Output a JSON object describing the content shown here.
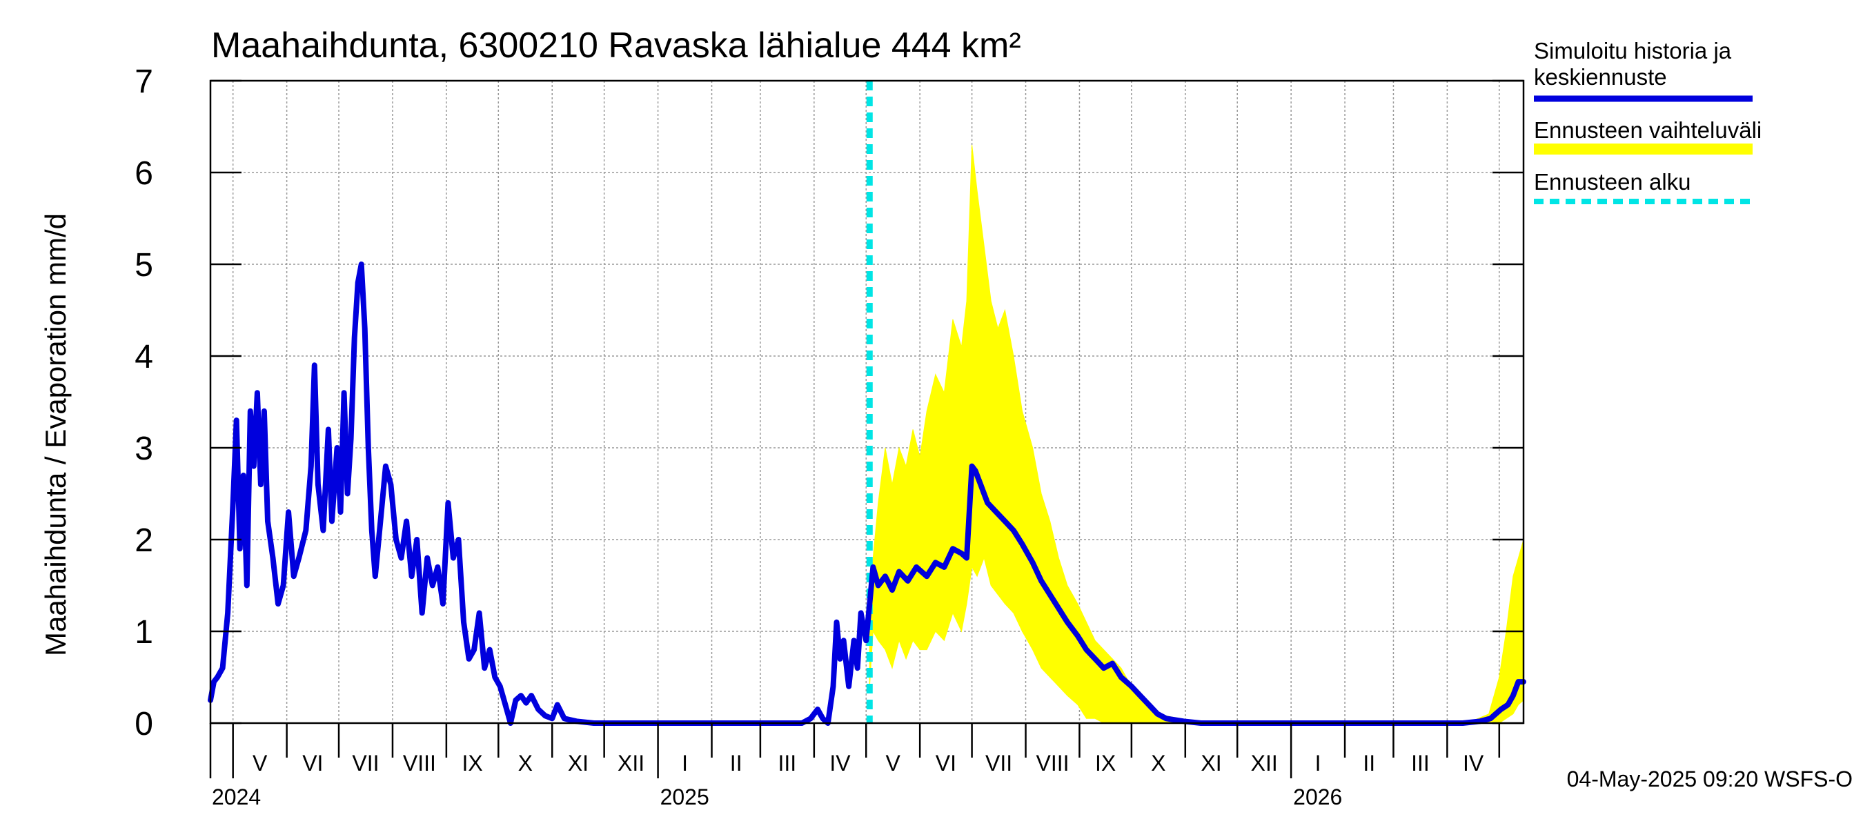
{
  "chart_data": {
    "type": "line",
    "title": "Maahaihdunta, 6300210 Ravaska lähialue 444 km²",
    "ylabel": "Maahaihdunta / Evaporation   mm/d",
    "ylim": [
      0,
      7
    ],
    "yticks": [
      0,
      1,
      2,
      3,
      4,
      5,
      6,
      7
    ],
    "xlim": [
      "2024-04-18",
      "2026-05-15"
    ],
    "grid": true,
    "month_labels": [
      "V",
      "VI",
      "VII",
      "VIII",
      "IX",
      "X",
      "XI",
      "XII",
      "I",
      "II",
      "III",
      "IV",
      "V",
      "VI",
      "VII",
      "VIII",
      "IX",
      "X",
      "XI",
      "XII",
      "I",
      "II",
      "III",
      "IV"
    ],
    "month_starts": [
      "2024-05-01",
      "2024-06-01",
      "2024-07-01",
      "2024-08-01",
      "2024-09-01",
      "2024-10-01",
      "2024-11-01",
      "2024-12-01",
      "2025-01-01",
      "2025-02-01",
      "2025-03-01",
      "2025-04-01",
      "2025-05-01",
      "2025-06-01",
      "2025-07-01",
      "2025-08-01",
      "2025-09-01",
      "2025-10-01",
      "2025-11-01",
      "2025-12-01",
      "2026-01-01",
      "2026-02-01",
      "2026-03-01",
      "2026-04-01",
      "2026-05-01"
    ],
    "year_labels": [
      {
        "label": "2024",
        "date": "2024-05-01"
      },
      {
        "label": "2025",
        "date": "2025-01-01"
      },
      {
        "label": "2026",
        "date": "2026-01-01"
      }
    ],
    "forecast_start": "2025-05-03",
    "legend_position": "right",
    "legend": [
      {
        "label_lines": [
          "Simuloitu historia ja",
          "keskiennuste"
        ],
        "color": "#0000dd",
        "style": "solid"
      },
      {
        "label_lines": [
          "Ennusteen vaihteluväli"
        ],
        "color": "#ffff00",
        "style": "band"
      },
      {
        "label_lines": [
          "Ennusteen alku"
        ],
        "color": "#00e5e5",
        "style": "dashed"
      }
    ],
    "series": [
      {
        "name": "Simuloitu historia ja keskiennuste",
        "color": "#0000dd",
        "points": [
          [
            "2024-04-18",
            0.25
          ],
          [
            "2024-04-20",
            0.45
          ],
          [
            "2024-04-22",
            0.5
          ],
          [
            "2024-04-25",
            0.6
          ],
          [
            "2024-04-28",
            1.2
          ],
          [
            "2024-05-01",
            2.4
          ],
          [
            "2024-05-03",
            3.3
          ],
          [
            "2024-05-05",
            1.9
          ],
          [
            "2024-05-07",
            2.7
          ],
          [
            "2024-05-09",
            1.5
          ],
          [
            "2024-05-11",
            3.4
          ],
          [
            "2024-05-13",
            2.8
          ],
          [
            "2024-05-15",
            3.6
          ],
          [
            "2024-05-17",
            2.6
          ],
          [
            "2024-05-19",
            3.4
          ],
          [
            "2024-05-21",
            2.2
          ],
          [
            "2024-05-24",
            1.8
          ],
          [
            "2024-05-27",
            1.3
          ],
          [
            "2024-05-30",
            1.5
          ],
          [
            "2024-06-02",
            2.3
          ],
          [
            "2024-06-05",
            1.6
          ],
          [
            "2024-06-08",
            1.8
          ],
          [
            "2024-06-12",
            2.1
          ],
          [
            "2024-06-15",
            2.8
          ],
          [
            "2024-06-17",
            3.9
          ],
          [
            "2024-06-19",
            2.6
          ],
          [
            "2024-06-22",
            2.1
          ],
          [
            "2024-06-25",
            3.2
          ],
          [
            "2024-06-27",
            2.2
          ],
          [
            "2024-06-30",
            3.0
          ],
          [
            "2024-07-02",
            2.3
          ],
          [
            "2024-07-04",
            3.6
          ],
          [
            "2024-07-06",
            2.5
          ],
          [
            "2024-07-08",
            3.1
          ],
          [
            "2024-07-10",
            4.2
          ],
          [
            "2024-07-12",
            4.8
          ],
          [
            "2024-07-14",
            5.0
          ],
          [
            "2024-07-16",
            4.3
          ],
          [
            "2024-07-18",
            3.0
          ],
          [
            "2024-07-20",
            2.1
          ],
          [
            "2024-07-22",
            1.6
          ],
          [
            "2024-07-25",
            2.2
          ],
          [
            "2024-07-28",
            2.8
          ],
          [
            "2024-07-31",
            2.6
          ],
          [
            "2024-08-03",
            2.0
          ],
          [
            "2024-08-06",
            1.8
          ],
          [
            "2024-08-09",
            2.2
          ],
          [
            "2024-08-12",
            1.6
          ],
          [
            "2024-08-15",
            2.0
          ],
          [
            "2024-08-18",
            1.2
          ],
          [
            "2024-08-21",
            1.8
          ],
          [
            "2024-08-24",
            1.5
          ],
          [
            "2024-08-27",
            1.7
          ],
          [
            "2024-08-30",
            1.3
          ],
          [
            "2024-09-02",
            2.4
          ],
          [
            "2024-09-05",
            1.8
          ],
          [
            "2024-09-08",
            2.0
          ],
          [
            "2024-09-11",
            1.1
          ],
          [
            "2024-09-14",
            0.7
          ],
          [
            "2024-09-17",
            0.8
          ],
          [
            "2024-09-20",
            1.2
          ],
          [
            "2024-09-23",
            0.6
          ],
          [
            "2024-09-26",
            0.8
          ],
          [
            "2024-09-29",
            0.5
          ],
          [
            "2024-10-02",
            0.4
          ],
          [
            "2024-10-05",
            0.2
          ],
          [
            "2024-10-08",
            0.0
          ],
          [
            "2024-10-11",
            0.25
          ],
          [
            "2024-10-14",
            0.3
          ],
          [
            "2024-10-17",
            0.22
          ],
          [
            "2024-10-20",
            0.3
          ],
          [
            "2024-10-24",
            0.15
          ],
          [
            "2024-10-28",
            0.08
          ],
          [
            "2024-11-01",
            0.05
          ],
          [
            "2024-11-04",
            0.2
          ],
          [
            "2024-11-08",
            0.05
          ],
          [
            "2024-11-15",
            0.02
          ],
          [
            "2024-11-25",
            0.0
          ],
          [
            "2024-12-15",
            0.0
          ],
          [
            "2025-01-15",
            0.0
          ],
          [
            "2025-02-15",
            0.0
          ],
          [
            "2025-03-15",
            0.0
          ],
          [
            "2025-03-25",
            0.0
          ],
          [
            "2025-03-30",
            0.05
          ],
          [
            "2025-04-03",
            0.15
          ],
          [
            "2025-04-06",
            0.05
          ],
          [
            "2025-04-09",
            0.0
          ],
          [
            "2025-04-12",
            0.4
          ],
          [
            "2025-04-14",
            1.1
          ],
          [
            "2025-04-16",
            0.7
          ],
          [
            "2025-04-18",
            0.9
          ],
          [
            "2025-04-21",
            0.4
          ],
          [
            "2025-04-24",
            0.9
          ],
          [
            "2025-04-26",
            0.6
          ],
          [
            "2025-04-28",
            1.2
          ],
          [
            "2025-05-01",
            0.9
          ],
          [
            "2025-05-03",
            1.3
          ],
          [
            "2025-05-05",
            1.7
          ],
          [
            "2025-05-08",
            1.5
          ],
          [
            "2025-05-12",
            1.6
          ],
          [
            "2025-05-16",
            1.45
          ],
          [
            "2025-05-20",
            1.65
          ],
          [
            "2025-05-25",
            1.55
          ],
          [
            "2025-05-30",
            1.7
          ],
          [
            "2025-06-05",
            1.6
          ],
          [
            "2025-06-10",
            1.75
          ],
          [
            "2025-06-15",
            1.7
          ],
          [
            "2025-06-20",
            1.9
          ],
          [
            "2025-06-25",
            1.85
          ],
          [
            "2025-06-28",
            1.8
          ],
          [
            "2025-07-01",
            2.8
          ],
          [
            "2025-07-03",
            2.75
          ],
          [
            "2025-07-06",
            2.6
          ],
          [
            "2025-07-10",
            2.4
          ],
          [
            "2025-07-15",
            2.3
          ],
          [
            "2025-07-20",
            2.2
          ],
          [
            "2025-07-25",
            2.1
          ],
          [
            "2025-07-30",
            1.95
          ],
          [
            "2025-08-05",
            1.75
          ],
          [
            "2025-08-10",
            1.55
          ],
          [
            "2025-08-15",
            1.4
          ],
          [
            "2025-08-20",
            1.25
          ],
          [
            "2025-08-25",
            1.1
          ],
          [
            "2025-08-31",
            0.95
          ],
          [
            "2025-09-05",
            0.8
          ],
          [
            "2025-09-10",
            0.7
          ],
          [
            "2025-09-15",
            0.6
          ],
          [
            "2025-09-20",
            0.65
          ],
          [
            "2025-09-25",
            0.5
          ],
          [
            "2025-10-01",
            0.4
          ],
          [
            "2025-10-06",
            0.3
          ],
          [
            "2025-10-11",
            0.2
          ],
          [
            "2025-10-16",
            0.1
          ],
          [
            "2025-10-21",
            0.05
          ],
          [
            "2025-10-31",
            0.02
          ],
          [
            "2025-11-10",
            0.0
          ],
          [
            "2025-12-01",
            0.0
          ],
          [
            "2026-01-01",
            0.0
          ],
          [
            "2026-02-01",
            0.0
          ],
          [
            "2026-03-01",
            0.0
          ],
          [
            "2026-04-01",
            0.0
          ],
          [
            "2026-04-10",
            0.0
          ],
          [
            "2026-04-20",
            0.02
          ],
          [
            "2026-04-26",
            0.05
          ],
          [
            "2026-05-02",
            0.15
          ],
          [
            "2026-05-06",
            0.2
          ],
          [
            "2026-05-09",
            0.3
          ],
          [
            "2026-05-12",
            0.45
          ],
          [
            "2026-05-15",
            0.45
          ]
        ]
      },
      {
        "name": "Ennusteen vaihteluväli",
        "color": "#ffff00",
        "band": [
          [
            "2025-05-03",
            0.4,
            1.0
          ],
          [
            "2025-05-05",
            1.0,
            1.8
          ],
          [
            "2025-05-08",
            0.9,
            2.4
          ],
          [
            "2025-05-12",
            0.8,
            3.0
          ],
          [
            "2025-05-16",
            0.6,
            2.6
          ],
          [
            "2025-05-20",
            0.9,
            3.0
          ],
          [
            "2025-05-24",
            0.7,
            2.8
          ],
          [
            "2025-05-28",
            0.9,
            3.2
          ],
          [
            "2025-06-01",
            0.8,
            2.9
          ],
          [
            "2025-06-05",
            0.8,
            3.4
          ],
          [
            "2025-06-10",
            1.0,
            3.8
          ],
          [
            "2025-06-15",
            0.9,
            3.6
          ],
          [
            "2025-06-20",
            1.2,
            4.4
          ],
          [
            "2025-06-25",
            1.0,
            4.1
          ],
          [
            "2025-06-28",
            1.3,
            4.6
          ],
          [
            "2025-07-01",
            1.7,
            6.3
          ],
          [
            "2025-07-04",
            1.6,
            5.8
          ],
          [
            "2025-07-08",
            1.8,
            5.2
          ],
          [
            "2025-07-12",
            1.5,
            4.6
          ],
          [
            "2025-07-16",
            1.4,
            4.3
          ],
          [
            "2025-07-20",
            1.3,
            4.5
          ],
          [
            "2025-07-25",
            1.2,
            4.0
          ],
          [
            "2025-07-30",
            1.0,
            3.4
          ],
          [
            "2025-08-05",
            0.8,
            3.0
          ],
          [
            "2025-08-10",
            0.6,
            2.5
          ],
          [
            "2025-08-15",
            0.5,
            2.2
          ],
          [
            "2025-08-20",
            0.4,
            1.8
          ],
          [
            "2025-08-25",
            0.3,
            1.5
          ],
          [
            "2025-08-31",
            0.2,
            1.3
          ],
          [
            "2025-09-05",
            0.05,
            1.1
          ],
          [
            "2025-09-10",
            0.05,
            0.9
          ],
          [
            "2025-09-15",
            0.0,
            0.8
          ],
          [
            "2025-09-20",
            0.0,
            0.7
          ],
          [
            "2025-09-25",
            0.0,
            0.6
          ],
          [
            "2025-10-01",
            0.0,
            0.4
          ],
          [
            "2025-10-06",
            0.0,
            0.3
          ],
          [
            "2025-10-11",
            0.0,
            0.2
          ],
          [
            "2025-10-16",
            0.0,
            0.12
          ],
          [
            "2025-10-21",
            0.0,
            0.08
          ],
          [
            "2025-10-31",
            0.0,
            0.04
          ],
          [
            "2025-11-10",
            0.0,
            0.01
          ],
          [
            "2026-04-01",
            0.0,
            0.0
          ],
          [
            "2026-04-15",
            0.0,
            0.02
          ],
          [
            "2026-04-25",
            0.0,
            0.1
          ],
          [
            "2026-05-01",
            0.0,
            0.5
          ],
          [
            "2026-05-05",
            0.05,
            1.0
          ],
          [
            "2026-05-09",
            0.1,
            1.6
          ],
          [
            "2026-05-12",
            0.2,
            1.8
          ],
          [
            "2026-05-15",
            0.25,
            2.0
          ]
        ]
      }
    ]
  },
  "footer": {
    "timestamp": "04-May-2025 09:20 WSFS-O"
  }
}
